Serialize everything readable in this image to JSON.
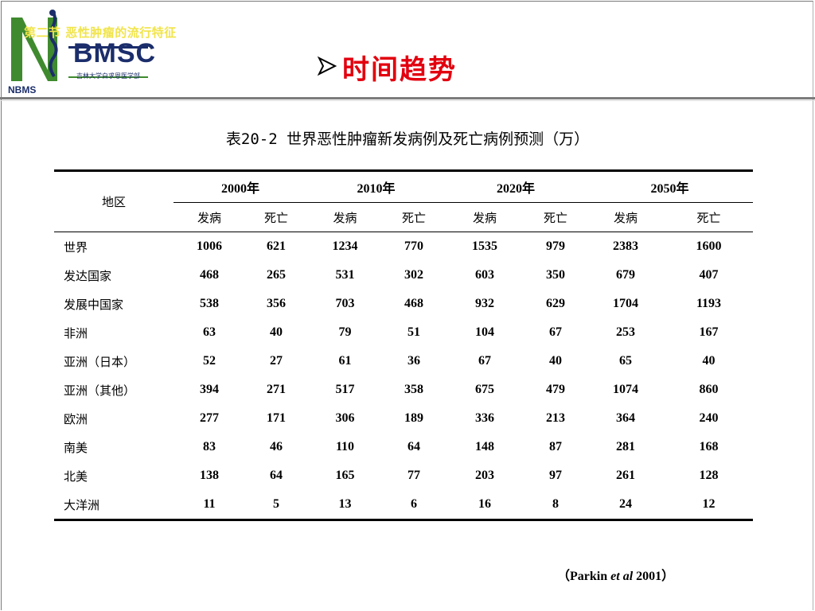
{
  "header": {
    "section_label": "第二节 恶性肿瘤的流行特征",
    "slide_title": "时间趋势",
    "logo_text": "BMSC",
    "logo_subtext": "吉林大学白求恩医学部",
    "logo_side_text": "NBMS"
  },
  "caption": "表20-2 世界恶性肿瘤新发病例及死亡病例预测（万）",
  "table": {
    "region_header": "地区",
    "years": [
      "2000年",
      "2010年",
      "2020年",
      "2050年"
    ],
    "sub_headers": [
      "发病",
      "死亡",
      "发病",
      "死亡",
      "发病",
      "死亡",
      "发病",
      "死亡"
    ],
    "rows": [
      {
        "region": "世界",
        "values": [
          "1006",
          "621",
          "1234",
          "770",
          "1535",
          "979",
          "2383",
          "1600"
        ]
      },
      {
        "region": "发达国家",
        "values": [
          "468",
          "265",
          "531",
          "302",
          "603",
          "350",
          "679",
          "407"
        ]
      },
      {
        "region": "发展中国家",
        "values": [
          "538",
          "356",
          "703",
          "468",
          "932",
          "629",
          "1704",
          "1193"
        ]
      },
      {
        "region": "非洲",
        "values": [
          "63",
          "40",
          "79",
          "51",
          "104",
          "67",
          "253",
          "167"
        ]
      },
      {
        "region": "亚洲（日本）",
        "values": [
          "52",
          "27",
          "61",
          "36",
          "67",
          "40",
          "65",
          "40"
        ]
      },
      {
        "region": "亚洲（其他）",
        "values": [
          "394",
          "271",
          "517",
          "358",
          "675",
          "479",
          "1074",
          "860"
        ]
      },
      {
        "region": "欧洲",
        "values": [
          "277",
          "171",
          "306",
          "189",
          "336",
          "213",
          "364",
          "240"
        ]
      },
      {
        "region": "南美",
        "values": [
          "83",
          "46",
          "110",
          "64",
          "148",
          "87",
          "281",
          "168"
        ]
      },
      {
        "region": "北美",
        "values": [
          "138",
          "64",
          "165",
          "77",
          "203",
          "97",
          "261",
          "128"
        ]
      },
      {
        "region": "大洋洲",
        "values": [
          "11",
          "5",
          "13",
          "6",
          "16",
          "8",
          "24",
          "12"
        ]
      }
    ]
  },
  "source": {
    "open": "（",
    "author": "Parkin ",
    "etal": "et al",
    "year": " 2001",
    "close": "）"
  },
  "colors": {
    "title_red": "#e3000f",
    "section_yellow": "#f1e44a",
    "logo_green": "#3f8a2e",
    "logo_navy": "#1b2d6b"
  }
}
